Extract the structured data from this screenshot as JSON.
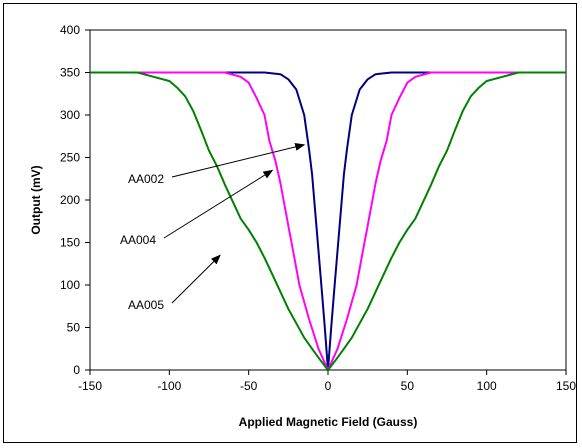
{
  "chart_data": {
    "type": "line",
    "title": "",
    "xlabel": "Applied Magnetic Field (Gauss)",
    "ylabel": "Output (mV)",
    "xlim": [
      -150,
      150
    ],
    "ylim": [
      0,
      400
    ],
    "xticks": [
      -150,
      -100,
      -50,
      0,
      50,
      100,
      150
    ],
    "yticks": [
      0,
      50,
      100,
      150,
      200,
      250,
      300,
      350,
      400
    ],
    "grid": false,
    "series": [
      {
        "name": "AA002",
        "color": "#000080",
        "points": [
          [
            -150,
            350
          ],
          [
            -40,
            350
          ],
          [
            -30,
            348
          ],
          [
            -25,
            342
          ],
          [
            -20,
            330
          ],
          [
            -15,
            300
          ],
          [
            -12,
            260
          ],
          [
            -10,
            230
          ],
          [
            -8,
            185
          ],
          [
            -6,
            140
          ],
          [
            -4,
            95
          ],
          [
            -2,
            50
          ],
          [
            0,
            0
          ],
          [
            2,
            50
          ],
          [
            4,
            95
          ],
          [
            6,
            140
          ],
          [
            8,
            185
          ],
          [
            10,
            230
          ],
          [
            12,
            260
          ],
          [
            15,
            300
          ],
          [
            20,
            330
          ],
          [
            25,
            342
          ],
          [
            30,
            348
          ],
          [
            40,
            350
          ],
          [
            150,
            350
          ]
        ]
      },
      {
        "name": "AA004",
        "color": "#ff00ff",
        "points": [
          [
            -150,
            350
          ],
          [
            -65,
            350
          ],
          [
            -55,
            345
          ],
          [
            -50,
            338
          ],
          [
            -45,
            320
          ],
          [
            -40,
            300
          ],
          [
            -37,
            270
          ],
          [
            -33,
            245
          ],
          [
            -30,
            220
          ],
          [
            -26,
            180
          ],
          [
            -22,
            140
          ],
          [
            -18,
            100
          ],
          [
            -12,
            60
          ],
          [
            -6,
            25
          ],
          [
            0,
            0
          ],
          [
            6,
            25
          ],
          [
            12,
            60
          ],
          [
            18,
            100
          ],
          [
            22,
            140
          ],
          [
            26,
            180
          ],
          [
            30,
            220
          ],
          [
            33,
            245
          ],
          [
            37,
            270
          ],
          [
            40,
            300
          ],
          [
            45,
            320
          ],
          [
            50,
            338
          ],
          [
            55,
            345
          ],
          [
            65,
            350
          ],
          [
            150,
            350
          ]
        ]
      },
      {
        "name": "AA005",
        "color": "#008000",
        "points": [
          [
            -150,
            350
          ],
          [
            -120,
            350
          ],
          [
            -110,
            345
          ],
          [
            -100,
            340
          ],
          [
            -95,
            332
          ],
          [
            -90,
            322
          ],
          [
            -85,
            305
          ],
          [
            -80,
            282
          ],
          [
            -75,
            258
          ],
          [
            -70,
            240
          ],
          [
            -65,
            218
          ],
          [
            -60,
            198
          ],
          [
            -55,
            178
          ],
          [
            -50,
            165
          ],
          [
            -45,
            150
          ],
          [
            -40,
            132
          ],
          [
            -35,
            112
          ],
          [
            -30,
            92
          ],
          [
            -25,
            72
          ],
          [
            -20,
            55
          ],
          [
            -15,
            38
          ],
          [
            -10,
            25
          ],
          [
            -5,
            12
          ],
          [
            0,
            0
          ],
          [
            5,
            12
          ],
          [
            10,
            25
          ],
          [
            15,
            38
          ],
          [
            20,
            55
          ],
          [
            25,
            72
          ],
          [
            30,
            92
          ],
          [
            35,
            112
          ],
          [
            40,
            132
          ],
          [
            45,
            150
          ],
          [
            50,
            165
          ],
          [
            55,
            178
          ],
          [
            60,
            198
          ],
          [
            65,
            218
          ],
          [
            70,
            240
          ],
          [
            75,
            258
          ],
          [
            80,
            282
          ],
          [
            85,
            305
          ],
          [
            90,
            322
          ],
          [
            95,
            332
          ],
          [
            100,
            340
          ],
          [
            110,
            345
          ],
          [
            120,
            350
          ],
          [
            150,
            350
          ]
        ]
      }
    ],
    "annotations": [
      {
        "text": "AA002",
        "series": "AA002",
        "target": [
          -15,
          265
        ]
      },
      {
        "text": "AA004",
        "series": "AA004",
        "target": [
          -35,
          235
        ]
      },
      {
        "text": "AA005",
        "series": "AA005",
        "target": [
          -68,
          135
        ]
      }
    ]
  }
}
